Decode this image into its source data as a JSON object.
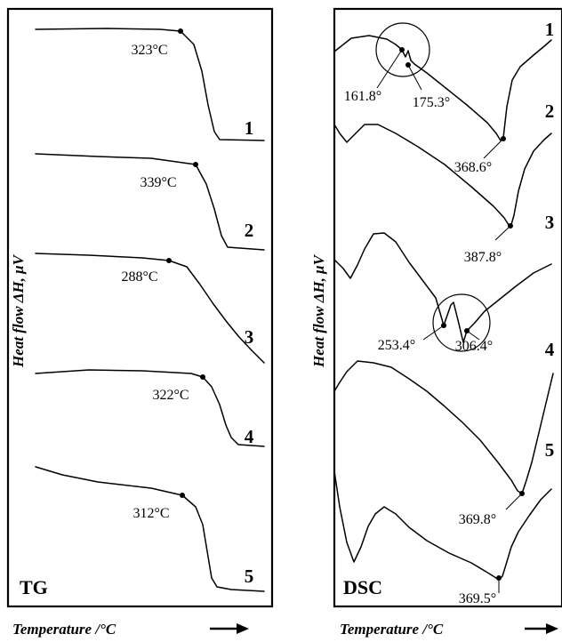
{
  "chart_data": [
    {
      "type": "line",
      "panel_label": "TG",
      "xlabel": "Temperature /°C",
      "ylabel": "Heat flow  ΔH, μV",
      "series": [
        {
          "name": "1",
          "onset_label": "323°C"
        },
        {
          "name": "2",
          "onset_label": "339°C"
        },
        {
          "name": "3",
          "onset_label": "288°C"
        },
        {
          "name": "4",
          "onset_label": "322°C"
        },
        {
          "name": "5",
          "onset_label": "312°C"
        }
      ]
    },
    {
      "type": "line",
      "panel_label": "DSC",
      "xlabel": "Temperature /°C",
      "ylabel": "Heat flow  ΔH, μV",
      "series": [
        {
          "name": "1",
          "peak_labels": [
            "161.8°",
            "175.3°",
            "368.6°"
          ]
        },
        {
          "name": "2",
          "peak_labels": [
            "387.8°"
          ]
        },
        {
          "name": "3",
          "peak_labels": [
            "253.4°",
            "306.4°"
          ]
        },
        {
          "name": "4",
          "peak_labels": [
            "369.8°"
          ]
        },
        {
          "name": "5",
          "peak_labels": [
            "369.5°"
          ]
        }
      ]
    }
  ]
}
